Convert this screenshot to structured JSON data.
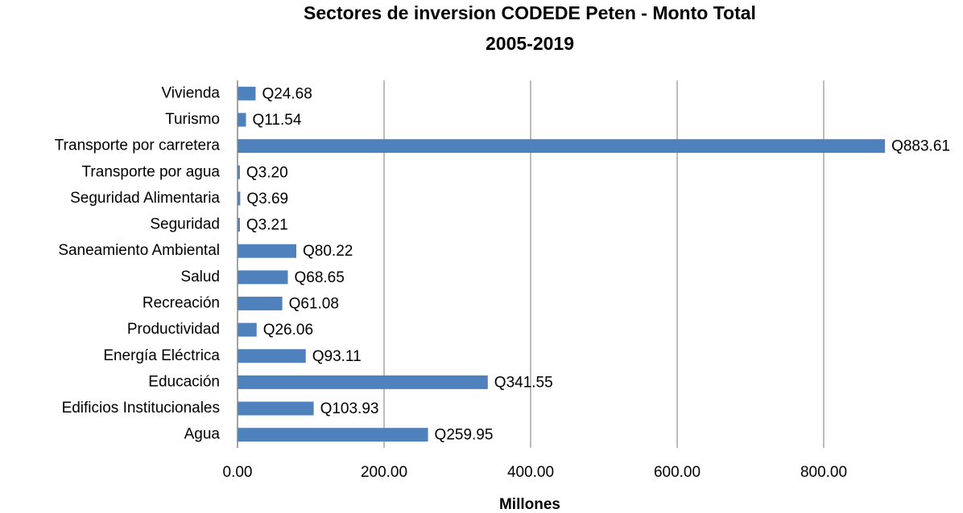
{
  "chart_data": {
    "type": "bar",
    "orientation": "horizontal",
    "title": [
      "Sectores de inversion CODEDE Peten - Monto Total",
      "2005-2019"
    ],
    "x_label": "Millones",
    "categories": [
      "Vivienda",
      "Turismo",
      "Transporte por carretera",
      "Transporte por agua",
      "Seguridad Alimentaria",
      "Seguridad",
      "Saneamiento Ambiental",
      "Salud",
      "Recreación",
      "Productividad",
      "Energía Eléctrica",
      "Educación",
      "Edificios Institucionales",
      "Agua"
    ],
    "values": [
      24.68,
      11.54,
      883.61,
      3.2,
      3.69,
      3.21,
      80.22,
      68.65,
      61.08,
      26.06,
      93.11,
      341.55,
      103.93,
      259.95
    ],
    "value_labels": [
      "Q24.68",
      "Q11.54",
      "Q883.61",
      "Q3.20",
      "Q3.69",
      "Q3.21",
      "Q80.22",
      "Q68.65",
      "Q61.08",
      "Q26.06",
      "Q93.11",
      "Q341.55",
      "Q103.93",
      "Q259.95"
    ],
    "color": "#4f81bd",
    "xlim": [
      0,
      900
    ],
    "xticks": [
      {
        "value": 0,
        "label": "0.00"
      },
      {
        "value": 200,
        "label": "200.00"
      },
      {
        "value": 400,
        "label": "400.00"
      },
      {
        "value": 600,
        "label": "600.00"
      },
      {
        "value": 800,
        "label": "800.00"
      }
    ],
    "grid": true
  }
}
